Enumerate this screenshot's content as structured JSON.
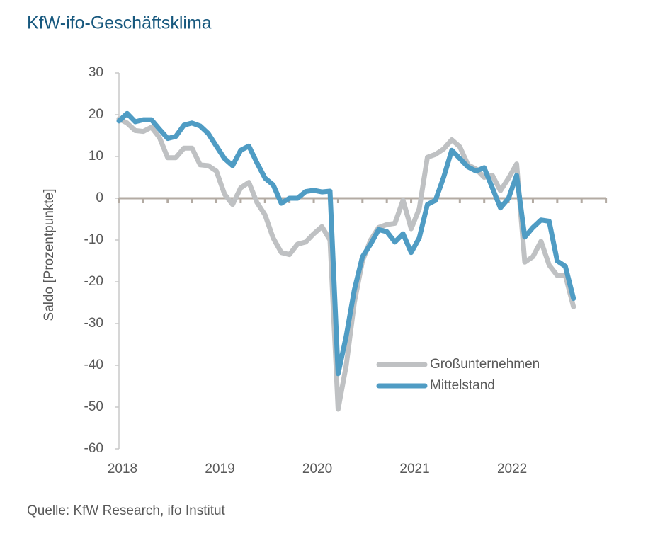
{
  "chart_data": {
    "type": "line",
    "title": "KfW-ifo-Geschäftsklima",
    "y_label": "Saldo [Prozentpunkte]",
    "source": "Quelle: KfW Research, ifo Institut",
    "categories": [
      "2018",
      null,
      null,
      null,
      null,
      null,
      null,
      null,
      null,
      null,
      null,
      null,
      "2019",
      null,
      null,
      null,
      null,
      null,
      null,
      null,
      null,
      null,
      null,
      null,
      "2020",
      null,
      null,
      null,
      null,
      null,
      null,
      null,
      null,
      null,
      null,
      null,
      "2021",
      null,
      null,
      null,
      null,
      null,
      null,
      null,
      null,
      null,
      null,
      null,
      "2022",
      null,
      null,
      null,
      null,
      null,
      null,
      null,
      null
    ],
    "series": [
      {
        "name": "Großunternehmen",
        "color": "#bfc1c3",
        "values": [
          19,
          18,
          16.2,
          16,
          17,
          14.5,
          9.7,
          9.7,
          12,
          12,
          8,
          7.8,
          6.5,
          1,
          -1.5,
          2.5,
          3.8,
          -1,
          -4,
          -9.5,
          -13,
          -13.5,
          -11,
          -10.5,
          -8.5,
          -6.8,
          -10,
          -50.5,
          -40,
          -25,
          -15,
          -10,
          -7,
          -6.3,
          -6,
          -0.5,
          -7.3,
          -2.5,
          9.8,
          10.5,
          11.8,
          14,
          12.3,
          8,
          7,
          5,
          5.5,
          1.8,
          4.8,
          8.2,
          -15.3,
          -14,
          -10.3,
          -16,
          -18.5,
          -18.5,
          -26
        ]
      },
      {
        "name": "Mittelstand",
        "color": "#4f9cc4",
        "values": [
          18.5,
          20.3,
          18.3,
          18.8,
          18.8,
          16.5,
          14.3,
          14.8,
          17.5,
          18,
          17.3,
          15.5,
          12.5,
          9.5,
          7.8,
          11.5,
          12.5,
          8.5,
          4.8,
          3.2,
          -1.2,
          0,
          0,
          1.6,
          1.9,
          1.5,
          1.7,
          -42,
          -33,
          -22,
          -14,
          -11,
          -7.5,
          -8,
          -10.5,
          -8.5,
          -13,
          -9.5,
          -1.5,
          -0.5,
          5,
          11.5,
          9.5,
          7.5,
          6.5,
          7.3,
          2.5,
          -2.3,
          0,
          5.5,
          -9.3,
          -7,
          -5.2,
          -5.5,
          -15,
          -16.3,
          -24
        ]
      }
    ],
    "ylim": [
      -60,
      30
    ],
    "yticks": [
      -60,
      -50,
      -40,
      -30,
      -20,
      -10,
      0,
      10,
      20,
      30
    ]
  }
}
